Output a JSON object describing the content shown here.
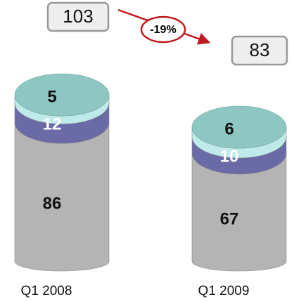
{
  "chart_data": {
    "type": "bar",
    "stacked": true,
    "categories": [
      "Q1 2008",
      "Q1 2009"
    ],
    "series": [
      {
        "color": "#b4b4b4",
        "values": [
          86,
          67
        ]
      },
      {
        "color": "#6a6aa6",
        "values": [
          12,
          10
        ]
      },
      {
        "color": "#bfeaea",
        "values": [
          5,
          6
        ]
      }
    ],
    "totals": [
      103,
      83
    ],
    "top_color": "#8ec6c2",
    "annotation": "-19%"
  }
}
